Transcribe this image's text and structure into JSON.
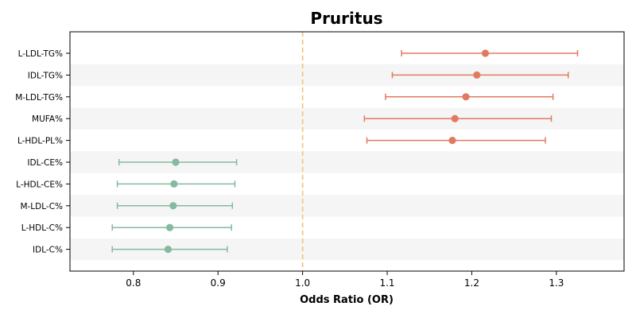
{
  "chart_data": {
    "type": "scatter",
    "subtype": "forest-plot",
    "title": "Pruritus",
    "xlabel": "Odds Ratio (OR)",
    "ylabel": "",
    "xlim": [
      0.725,
      1.38
    ],
    "xticks": [
      0.8,
      0.9,
      1.0,
      1.1,
      1.2,
      1.3
    ],
    "xtick_labels": [
      "0.8",
      "0.9",
      "1.0",
      "1.1",
      "1.2",
      "1.3"
    ],
    "reference_line": 1.0,
    "grid": false,
    "alternating_row_shading": true,
    "categories": [
      "L-LDL-TG%",
      "IDL-TG%",
      "M-LDL-TG%",
      "MUFA%",
      "L-HDL-PL%",
      "IDL-CE%",
      "L-HDL-CE%",
      "M-LDL-C%",
      "L-HDL-C%",
      "IDL-C%"
    ],
    "or": [
      1.216,
      1.206,
      1.193,
      1.18,
      1.177,
      0.85,
      0.848,
      0.847,
      0.843,
      0.841
    ],
    "ci_low": [
      1.117,
      1.106,
      1.098,
      1.073,
      1.076,
      0.783,
      0.781,
      0.781,
      0.775,
      0.775
    ],
    "ci_high": [
      1.325,
      1.314,
      1.296,
      1.294,
      1.287,
      0.922,
      0.92,
      0.917,
      0.916,
      0.911
    ],
    "colors": {
      "risk": "#e07b5f",
      "protective": "#85b9a0",
      "reference_line": "#f5c07a",
      "row_shade": "#f5f5f5"
    }
  }
}
